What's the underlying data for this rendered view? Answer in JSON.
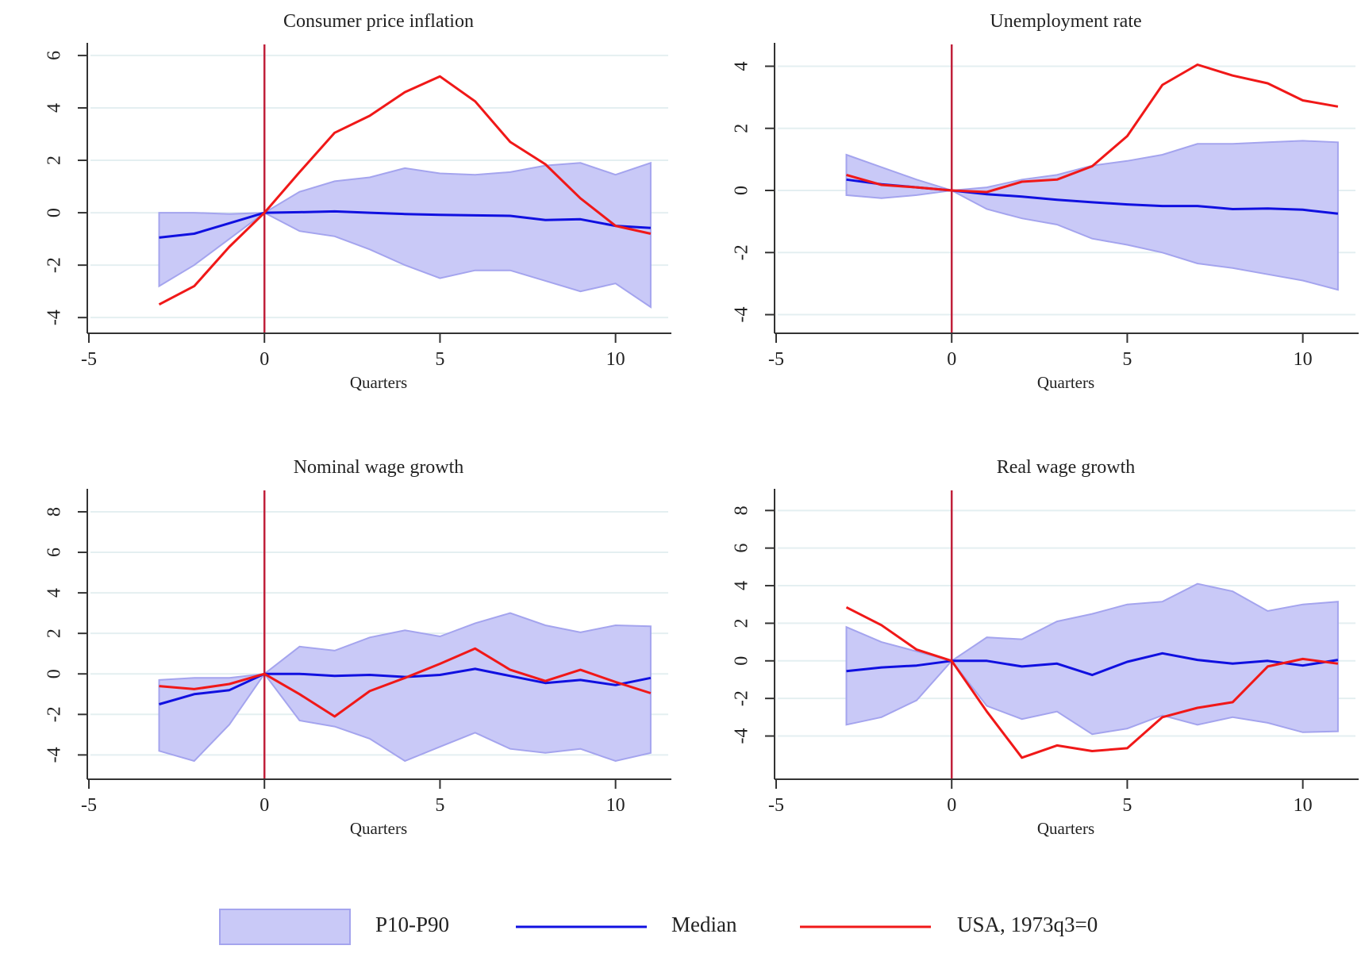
{
  "colors": {
    "band_fill": "#c9c9f7",
    "band_edge": "#a4a4ee",
    "median": "#1010e0",
    "usa": "#f01818",
    "event_line": "#c0203a",
    "grid": "#e4eff1",
    "axis": "#333333"
  },
  "legend": {
    "position": "bottom",
    "items": [
      {
        "key": "band",
        "label": "P10-P90"
      },
      {
        "key": "median",
        "label": "Median"
      },
      {
        "key": "usa",
        "label": "USA, 1973q3=0"
      }
    ]
  },
  "chart_data": [
    {
      "type": "area",
      "title": "Consumer price inflation",
      "xlabel": "Quarters",
      "ylabel": "",
      "xlim": [
        -5,
        11.5
      ],
      "ylim": [
        -4.6,
        6.3
      ],
      "xticks": [
        -5,
        0,
        5,
        10
      ],
      "yticks": [
        -4,
        -2,
        0,
        2,
        4,
        6
      ],
      "vline_x": 0,
      "grid": true,
      "x": [
        -3,
        -2,
        -1,
        0,
        1,
        2,
        3,
        4,
        5,
        6,
        7,
        8,
        9,
        10,
        11
      ],
      "series": [
        {
          "name": "P10",
          "values": [
            -2.8,
            -2.0,
            -1.0,
            0,
            -0.7,
            -0.9,
            -1.4,
            -2.0,
            -2.5,
            -2.2,
            -2.2,
            -2.6,
            -3.0,
            -2.7,
            -3.6
          ]
        },
        {
          "name": "P90",
          "values": [
            0.0,
            0.0,
            -0.05,
            0,
            0.8,
            1.2,
            1.35,
            1.7,
            1.5,
            1.45,
            1.55,
            1.8,
            1.9,
            1.45,
            1.9
          ]
        },
        {
          "name": "Median",
          "values": [
            -0.95,
            -0.8,
            -0.4,
            0,
            0.02,
            0.05,
            0.0,
            -0.05,
            -0.08,
            -0.1,
            -0.12,
            -0.28,
            -0.25,
            -0.5,
            -0.58
          ]
        },
        {
          "name": "USA, 1973q3=0",
          "values": [
            -3.5,
            -2.8,
            -1.3,
            0,
            1.55,
            3.05,
            3.7,
            4.6,
            5.2,
            4.25,
            2.7,
            1.85,
            0.55,
            -0.5,
            -0.8
          ]
        }
      ]
    },
    {
      "type": "area",
      "title": "Unemployment rate",
      "xlabel": "Quarters",
      "ylabel": "",
      "xlim": [
        -5,
        11.5
      ],
      "ylim": [
        -4.6,
        4.6
      ],
      "xticks": [
        -5,
        0,
        5,
        10
      ],
      "yticks": [
        -4,
        -2,
        0,
        2,
        4
      ],
      "vline_x": 0,
      "grid": true,
      "x": [
        -3,
        -2,
        -1,
        0,
        1,
        2,
        3,
        4,
        5,
        6,
        7,
        8,
        9,
        10,
        11
      ],
      "series": [
        {
          "name": "P10",
          "values": [
            -0.15,
            -0.25,
            -0.15,
            0,
            -0.6,
            -0.9,
            -1.1,
            -1.55,
            -1.75,
            -2.0,
            -2.35,
            -2.5,
            -2.7,
            -2.9,
            -3.2
          ]
        },
        {
          "name": "P90",
          "values": [
            1.15,
            0.75,
            0.35,
            0,
            0.1,
            0.35,
            0.5,
            0.8,
            0.95,
            1.15,
            1.5,
            1.5,
            1.55,
            1.6,
            1.55
          ]
        },
        {
          "name": "Median",
          "values": [
            0.35,
            0.2,
            0.1,
            0,
            -0.12,
            -0.2,
            -0.3,
            -0.38,
            -0.45,
            -0.5,
            -0.5,
            -0.6,
            -0.58,
            -0.62,
            -0.75
          ]
        },
        {
          "name": "USA, 1973q3=0",
          "values": [
            0.5,
            0.18,
            0.1,
            0,
            -0.05,
            0.28,
            0.35,
            0.78,
            1.75,
            3.4,
            4.05,
            3.7,
            3.45,
            2.9,
            2.7
          ]
        }
      ]
    },
    {
      "type": "area",
      "title": "Nominal wage growth",
      "xlabel": "Quarters",
      "ylabel": "",
      "xlim": [
        -5,
        11.5
      ],
      "ylim": [
        -5.2,
        8.9
      ],
      "xticks": [
        -5,
        0,
        5,
        10
      ],
      "yticks": [
        -4,
        -2,
        0,
        2,
        4,
        6,
        8
      ],
      "vline_x": 0,
      "grid": true,
      "x": [
        -3,
        -2,
        -1,
        0,
        1,
        2,
        3,
        4,
        5,
        6,
        7,
        8,
        9,
        10,
        11
      ],
      "series": [
        {
          "name": "P10",
          "values": [
            -3.8,
            -4.3,
            -2.5,
            0,
            -2.3,
            -2.6,
            -3.2,
            -4.3,
            -3.6,
            -2.9,
            -3.7,
            -3.9,
            -3.7,
            -4.3,
            -3.9
          ]
        },
        {
          "name": "P90",
          "values": [
            -0.3,
            -0.2,
            -0.2,
            0,
            1.35,
            1.15,
            1.8,
            2.15,
            1.85,
            2.5,
            3.0,
            2.4,
            2.05,
            2.4,
            2.35
          ]
        },
        {
          "name": "Median",
          "values": [
            -1.5,
            -1.0,
            -0.8,
            0,
            0.0,
            -0.1,
            -0.05,
            -0.15,
            -0.05,
            0.25,
            -0.1,
            -0.45,
            -0.3,
            -0.55,
            -0.2
          ]
        },
        {
          "name": "USA, 1973q3=0",
          "values": [
            -0.6,
            -0.75,
            -0.5,
            0,
            -1.0,
            -2.1,
            -0.85,
            -0.2,
            0.5,
            1.25,
            0.2,
            -0.35,
            0.2,
            -0.4,
            -0.95
          ]
        }
      ]
    },
    {
      "type": "area",
      "title": "Real wage growth",
      "xlabel": "Quarters",
      "ylabel": "",
      "xlim": [
        -5,
        11.5
      ],
      "ylim": [
        -6.3,
        8.9
      ],
      "xticks": [
        -5,
        0,
        5,
        10
      ],
      "yticks": [
        -4,
        -2,
        0,
        2,
        4,
        6,
        8
      ],
      "vline_x": 0,
      "grid": true,
      "x": [
        -3,
        -2,
        -1,
        0,
        1,
        2,
        3,
        4,
        5,
        6,
        7,
        8,
        9,
        10,
        11
      ],
      "series": [
        {
          "name": "P10",
          "values": [
            -3.4,
            -3.0,
            -2.1,
            0,
            -2.4,
            -3.1,
            -2.7,
            -3.9,
            -3.6,
            -2.9,
            -3.4,
            -3.0,
            -3.3,
            -3.8,
            -3.75
          ]
        },
        {
          "name": "P90",
          "values": [
            1.8,
            1.0,
            0.5,
            0,
            1.25,
            1.15,
            2.1,
            2.5,
            3.0,
            3.15,
            4.1,
            3.7,
            2.65,
            3.0,
            3.15
          ]
        },
        {
          "name": "Median",
          "values": [
            -0.55,
            -0.35,
            -0.25,
            0,
            0.0,
            -0.3,
            -0.15,
            -0.75,
            -0.05,
            0.4,
            0.05,
            -0.15,
            0.0,
            -0.25,
            0.05
          ]
        },
        {
          "name": "USA, 1973q3=0",
          "values": [
            2.85,
            1.9,
            0.6,
            0,
            -2.7,
            -5.15,
            -4.5,
            -4.8,
            -4.65,
            -3.0,
            -2.5,
            -2.2,
            -0.3,
            0.1,
            -0.15
          ]
        }
      ]
    }
  ]
}
